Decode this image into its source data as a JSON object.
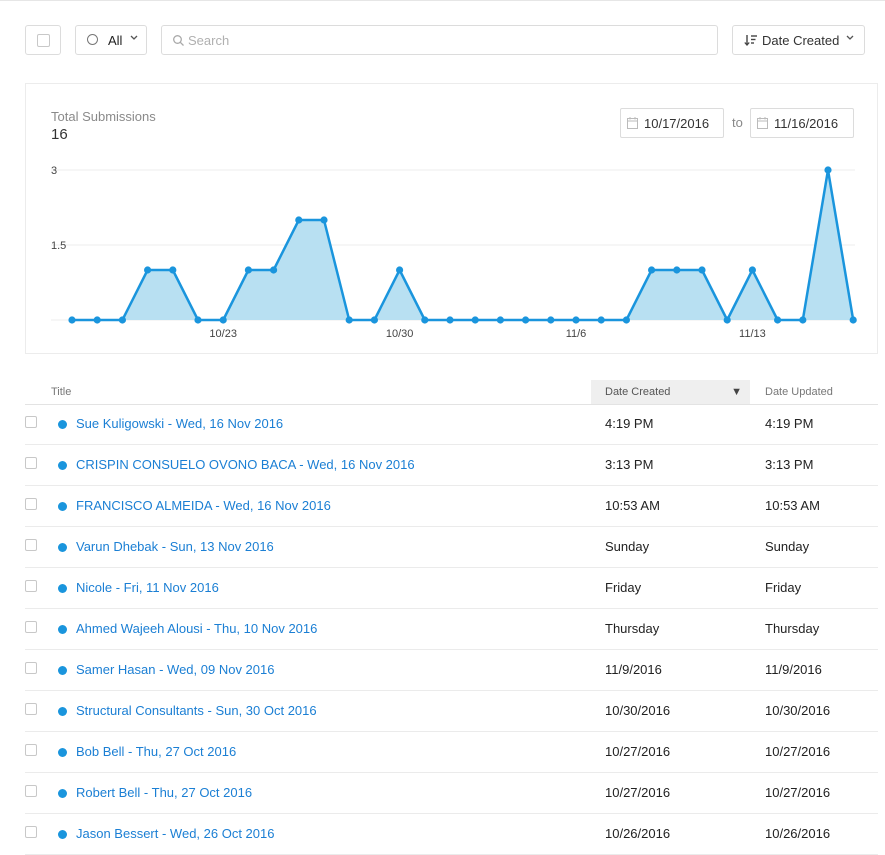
{
  "toolbar": {
    "filter_label": "All",
    "search_placeholder": "Search",
    "sort_label": "Date Created"
  },
  "summary": {
    "label": "Total Submissions",
    "total": "16",
    "date_from": "10/17/2016",
    "date_to": "11/16/2016",
    "to_label": "to"
  },
  "chart_data": {
    "type": "area",
    "color": "#1a95dd",
    "fill": "#b8e0f2",
    "y_ticks": [
      "3",
      "1.5"
    ],
    "ylim": [
      0,
      3
    ],
    "x_tick_labels": [
      {
        "index": 6,
        "label": "10/23"
      },
      {
        "index": 13,
        "label": "10/30"
      },
      {
        "index": 20,
        "label": "11/6"
      },
      {
        "index": 27,
        "label": "11/13"
      }
    ],
    "dates": [
      "10/17",
      "10/18",
      "10/19",
      "10/20",
      "10/21",
      "10/22",
      "10/23",
      "10/24",
      "10/25",
      "10/26",
      "10/27",
      "10/28",
      "10/29",
      "10/30",
      "10/31",
      "11/1",
      "11/2",
      "11/3",
      "11/4",
      "11/5",
      "11/6",
      "11/7",
      "11/8",
      "11/9",
      "11/10",
      "11/11",
      "11/12",
      "11/13",
      "11/14",
      "11/15",
      "11/16",
      "11/17"
    ],
    "values": [
      0,
      0,
      0,
      1,
      1,
      0,
      0,
      1,
      1,
      2,
      2,
      0,
      0,
      1,
      0,
      0,
      0,
      0,
      0,
      0,
      0,
      0,
      0,
      1,
      1,
      1,
      0,
      1,
      0,
      0,
      3,
      0
    ],
    "grid": true
  },
  "table": {
    "columns": {
      "title": "Title",
      "created": "Date Created",
      "updated": "Date Updated",
      "sort_arrow": "▼"
    },
    "rows": [
      {
        "title": "Sue Kuligowski - Wed, 16 Nov 2016",
        "created": "4:19 PM",
        "updated": "4:19 PM"
      },
      {
        "title": "CRISPIN CONSUELO OVONO BACA - Wed, 16 Nov 2016",
        "created": "3:13 PM",
        "updated": "3:13 PM"
      },
      {
        "title": "FRANCISCO ALMEIDA - Wed, 16 Nov 2016",
        "created": "10:53 AM",
        "updated": "10:53 AM"
      },
      {
        "title": "Varun Dhebak - Sun, 13 Nov 2016",
        "created": "Sunday",
        "updated": "Sunday"
      },
      {
        "title": "Nicole - Fri, 11 Nov 2016",
        "created": "Friday",
        "updated": "Friday"
      },
      {
        "title": "Ahmed Wajeeh Alousi - Thu, 10 Nov 2016",
        "created": "Thursday",
        "updated": "Thursday"
      },
      {
        "title": "Samer Hasan - Wed, 09 Nov 2016",
        "created": "11/9/2016",
        "updated": "11/9/2016"
      },
      {
        "title": "Structural Consultants - Sun, 30 Oct 2016",
        "created": "10/30/2016",
        "updated": "10/30/2016"
      },
      {
        "title": "Bob Bell - Thu, 27 Oct 2016",
        "created": "10/27/2016",
        "updated": "10/27/2016"
      },
      {
        "title": "Robert Bell - Thu, 27 Oct 2016",
        "created": "10/27/2016",
        "updated": "10/27/2016"
      },
      {
        "title": "Jason Bessert - Wed, 26 Oct 2016",
        "created": "10/26/2016",
        "updated": "10/26/2016"
      }
    ]
  }
}
